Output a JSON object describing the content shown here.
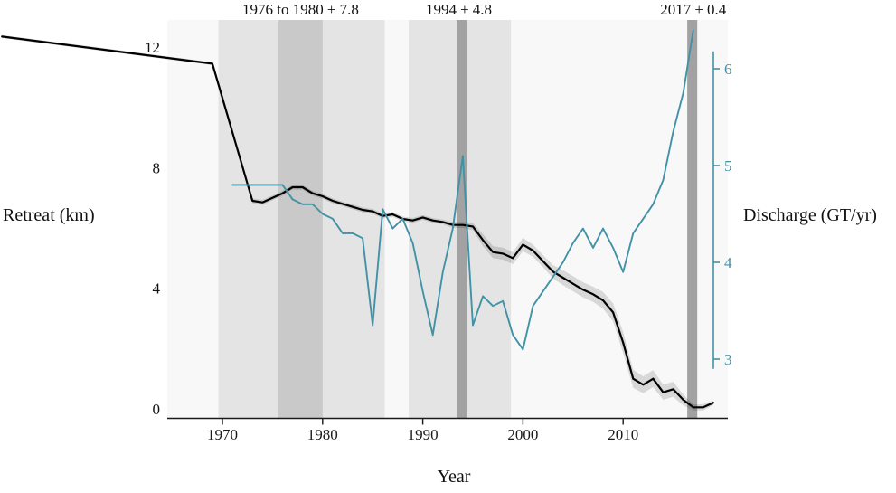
{
  "chart_data": {
    "type": "line",
    "title": "",
    "xlabel": "Year",
    "x_ticks": [
      1970,
      1980,
      1990,
      2000,
      2010
    ],
    "x_range": [
      1948,
      2020
    ],
    "left_axis": {
      "label": "Retreat (km)",
      "ticks": [
        0,
        4,
        8,
        12
      ],
      "range": [
        0,
        13.2
      ],
      "color": "#111111"
    },
    "right_axis": {
      "label": "Discharge (GT/yr)",
      "ticks": [
        3,
        4,
        5,
        6
      ],
      "range": [
        2.9,
        6.5
      ],
      "color": "#4292a6"
    },
    "annotations": [
      {
        "text": "1976 to 1980 ± 7.8",
        "center_year": 1977.8
      },
      {
        "text": "1994 ± 4.8",
        "center_year": 1993.6
      },
      {
        "text": "2017 ± 0.4",
        "center_year": 2017
      }
    ],
    "bands": [
      {
        "from": 1969.6,
        "to": 1986.2,
        "shade": "light"
      },
      {
        "from": 1975.6,
        "to": 1980.0,
        "shade": "medium"
      },
      {
        "from": 1988.6,
        "to": 1998.8,
        "shade": "light"
      },
      {
        "from": 1993.4,
        "to": 1994.4,
        "shade": "dark"
      },
      {
        "from": 2016.4,
        "to": 2017.4,
        "shade": "dark"
      }
    ],
    "series": [
      {
        "name": "Retreat",
        "axis": "left",
        "color": "#000000",
        "points": [
          [
            1948,
            12.35,
            0.05
          ],
          [
            1969,
            11.45,
            0.05
          ],
          [
            1973,
            6.9,
            0.08
          ],
          [
            1974,
            6.85,
            0.08
          ],
          [
            1975,
            7.0,
            0.08
          ],
          [
            1976,
            7.15,
            0.08
          ],
          [
            1977,
            7.35,
            0.08
          ],
          [
            1978,
            7.35,
            0.08
          ],
          [
            1979,
            7.15,
            0.08
          ],
          [
            1980,
            7.05,
            0.08
          ],
          [
            1981,
            6.9,
            0.08
          ],
          [
            1982,
            6.8,
            0.08
          ],
          [
            1983,
            6.7,
            0.08
          ],
          [
            1984,
            6.6,
            0.08
          ],
          [
            1985,
            6.55,
            0.08
          ],
          [
            1986,
            6.4,
            0.08
          ],
          [
            1987,
            6.45,
            0.08
          ],
          [
            1988,
            6.3,
            0.08
          ],
          [
            1989,
            6.25,
            0.08
          ],
          [
            1990,
            6.35,
            0.08
          ],
          [
            1991,
            6.25,
            0.08
          ],
          [
            1992,
            6.2,
            0.08
          ],
          [
            1993,
            6.1,
            0.1
          ],
          [
            1994,
            6.1,
            0.1
          ],
          [
            1995,
            6.05,
            0.12
          ],
          [
            1996,
            5.6,
            0.2
          ],
          [
            1997,
            5.2,
            0.2
          ],
          [
            1998,
            5.15,
            0.2
          ],
          [
            1999,
            5.0,
            0.2
          ],
          [
            2000,
            5.45,
            0.22
          ],
          [
            2001,
            5.25,
            0.2
          ],
          [
            2002,
            4.9,
            0.2
          ],
          [
            2003,
            4.55,
            0.22
          ],
          [
            2004,
            4.35,
            0.25
          ],
          [
            2005,
            4.15,
            0.25
          ],
          [
            2006,
            3.95,
            0.25
          ],
          [
            2007,
            3.8,
            0.25
          ],
          [
            2008,
            3.6,
            0.28
          ],
          [
            2009,
            3.2,
            0.3
          ],
          [
            2010,
            2.2,
            0.35
          ],
          [
            2011,
            1.0,
            0.3
          ],
          [
            2012,
            0.8,
            0.28
          ],
          [
            2013,
            1.0,
            0.28
          ],
          [
            2014,
            0.55,
            0.25
          ],
          [
            2015,
            0.65,
            0.25
          ],
          [
            2016,
            0.3,
            0.18
          ],
          [
            2017,
            0.05,
            0.1
          ],
          [
            2018,
            0.05,
            0.1
          ],
          [
            2019,
            0.2,
            0.08
          ]
        ]
      },
      {
        "name": "Discharge",
        "axis": "right",
        "color": "#4292a6",
        "points": [
          [
            1971,
            4.8
          ],
          [
            1972,
            4.8
          ],
          [
            1973,
            4.8
          ],
          [
            1974,
            4.8
          ],
          [
            1975,
            4.8
          ],
          [
            1976,
            4.8
          ],
          [
            1977,
            4.65
          ],
          [
            1978,
            4.6
          ],
          [
            1979,
            4.6
          ],
          [
            1980,
            4.5
          ],
          [
            1981,
            4.45
          ],
          [
            1982,
            4.3
          ],
          [
            1983,
            4.3
          ],
          [
            1984,
            4.25
          ],
          [
            1985,
            3.35
          ],
          [
            1986,
            4.55
          ],
          [
            1987,
            4.35
          ],
          [
            1988,
            4.45
          ],
          [
            1989,
            4.2
          ],
          [
            1990,
            3.7
          ],
          [
            1991,
            3.25
          ],
          [
            1992,
            3.9
          ],
          [
            1993,
            4.35
          ],
          [
            1994,
            5.1
          ],
          [
            1995,
            3.35
          ],
          [
            1996,
            3.65
          ],
          [
            1997,
            3.55
          ],
          [
            1998,
            3.6
          ],
          [
            1999,
            3.25
          ],
          [
            2000,
            3.1
          ],
          [
            2001,
            3.55
          ],
          [
            2002,
            3.7
          ],
          [
            2003,
            3.85
          ],
          [
            2004,
            4.0
          ],
          [
            2005,
            4.2
          ],
          [
            2006,
            4.35
          ],
          [
            2007,
            4.15
          ],
          [
            2008,
            4.35
          ],
          [
            2009,
            4.15
          ],
          [
            2010,
            3.9
          ],
          [
            2011,
            4.3
          ],
          [
            2012,
            4.45
          ],
          [
            2013,
            4.6
          ],
          [
            2014,
            4.85
          ],
          [
            2015,
            5.35
          ],
          [
            2016,
            5.75
          ],
          [
            2017,
            6.4
          ]
        ]
      }
    ],
    "colors": {
      "panel_bg": "#f8f8f8",
      "band_light": "#e4e4e4",
      "band_medium": "#c9c9c9",
      "band_dark": "#a2a2a2",
      "ribbon": "rgba(0,0,0,0.13)",
      "axis": "#1a1a1a"
    }
  }
}
